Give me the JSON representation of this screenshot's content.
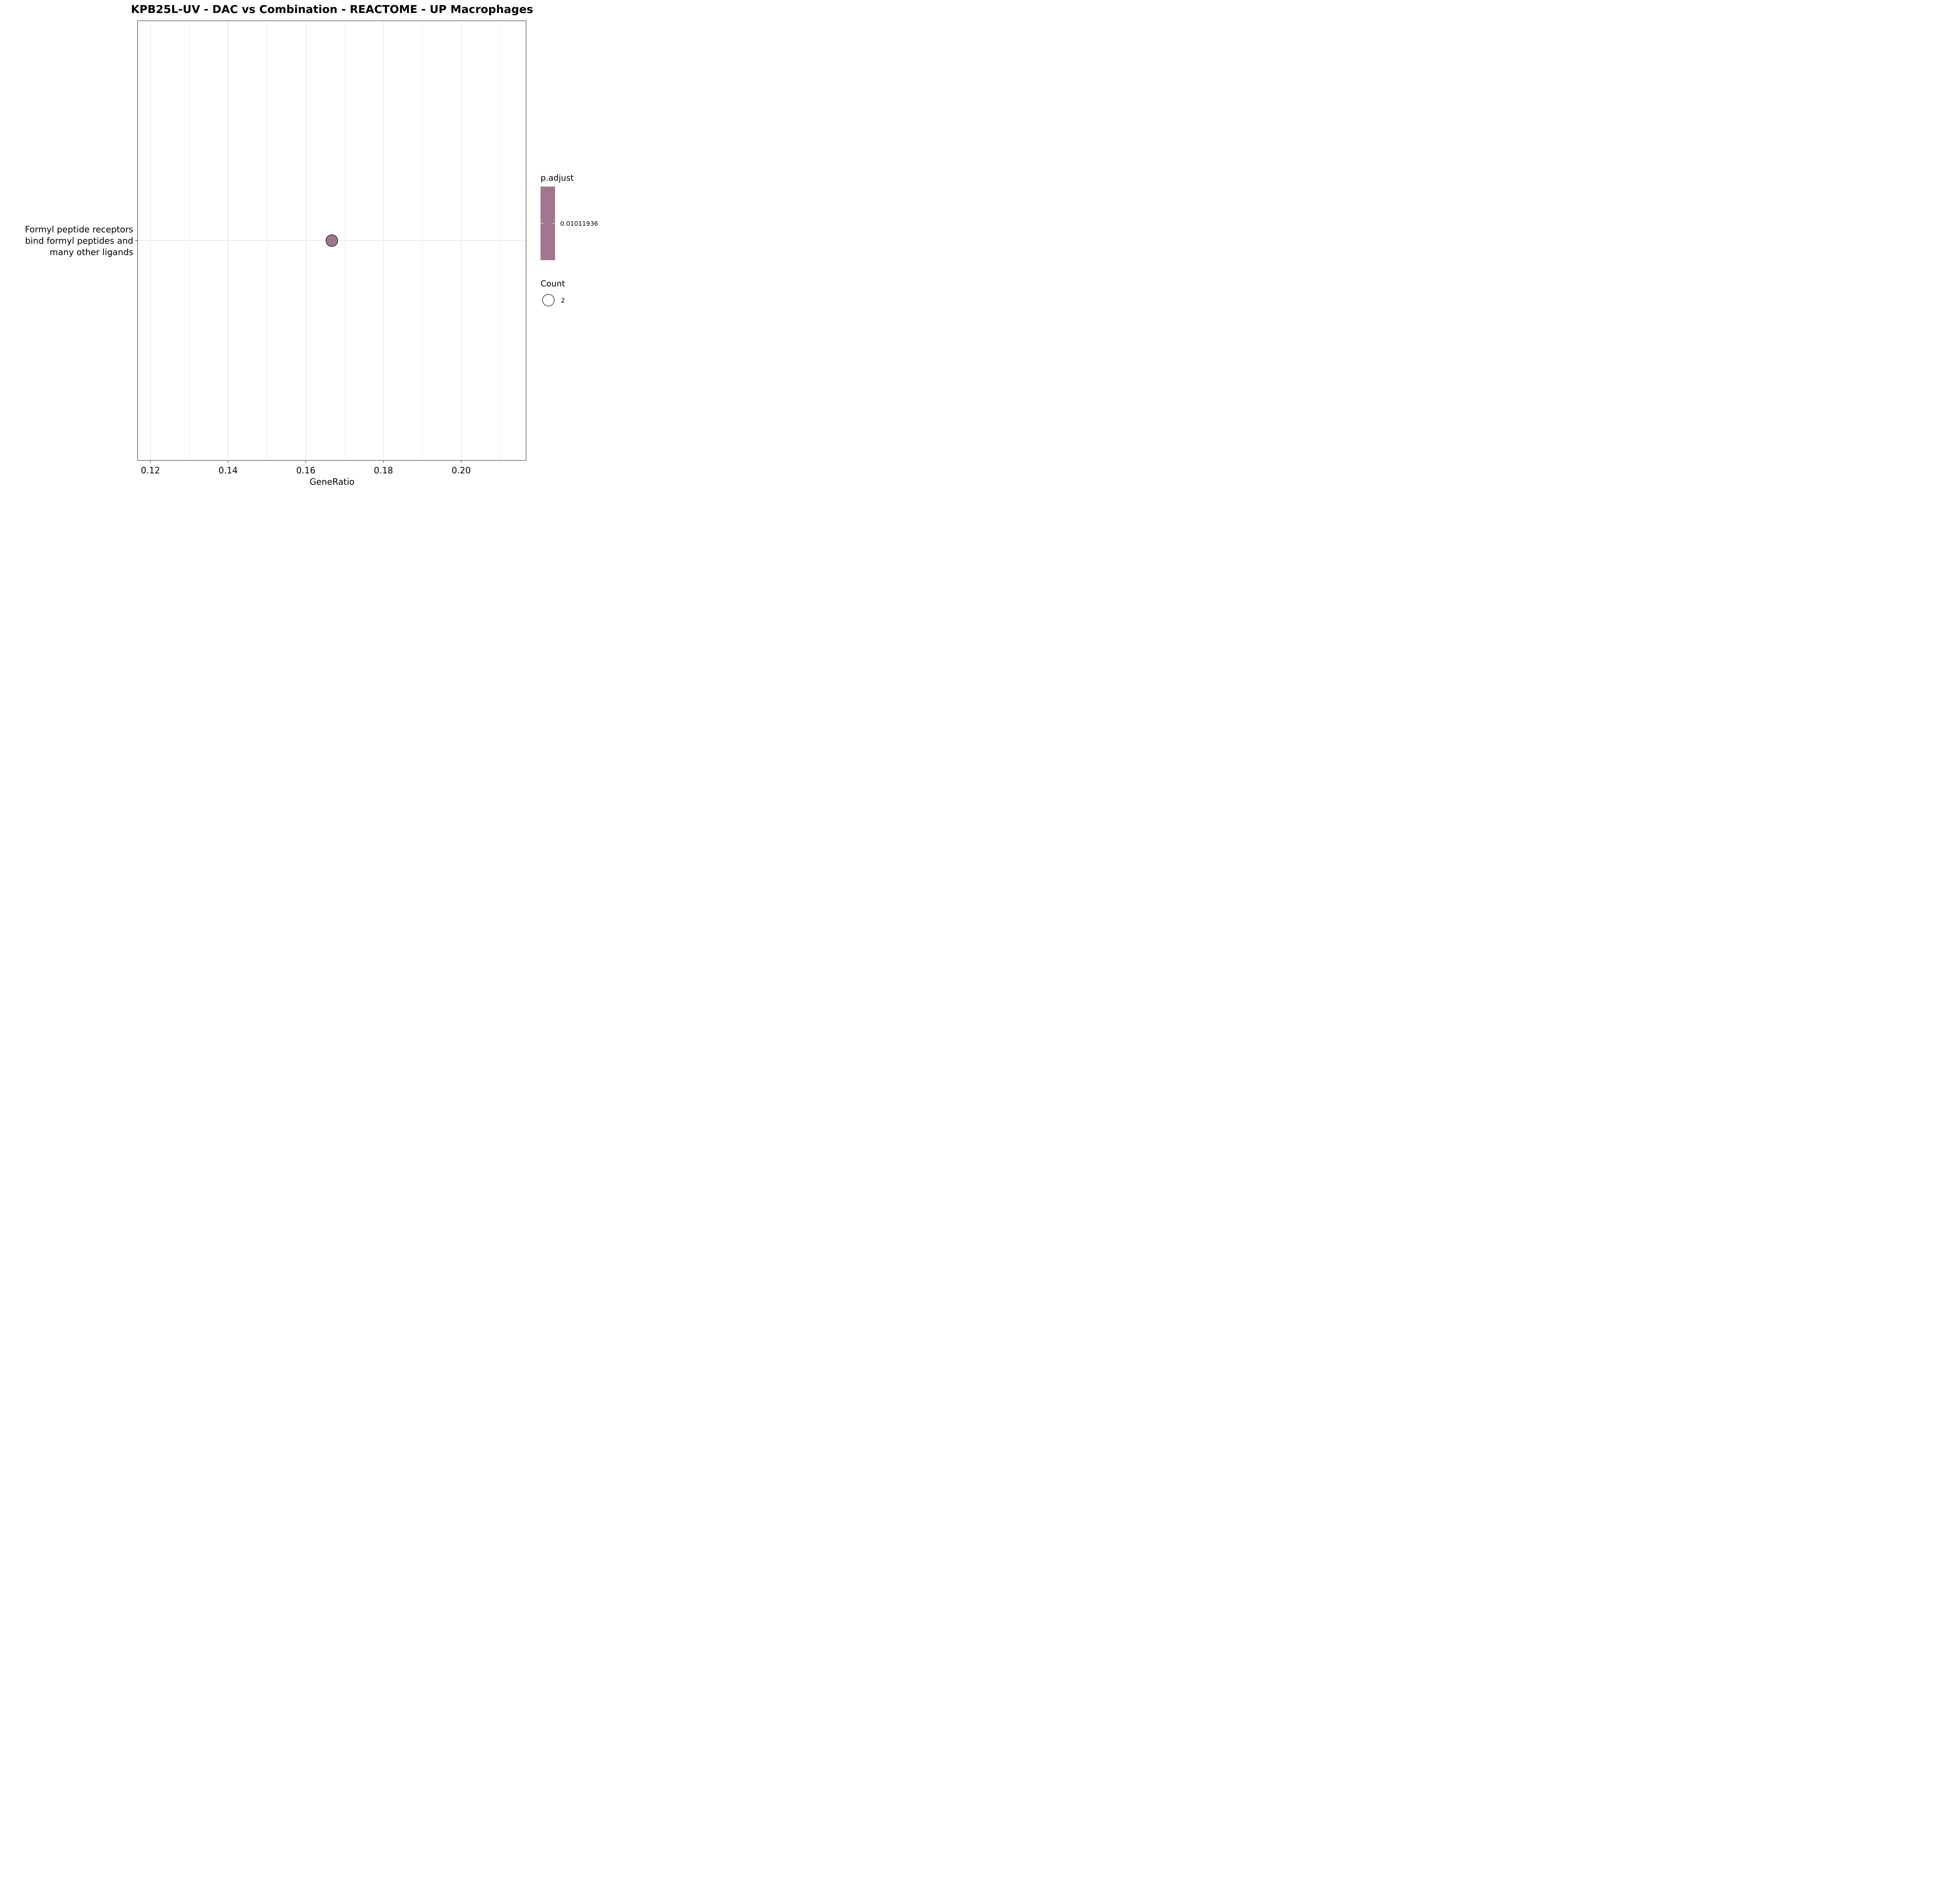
{
  "chart_data": {
    "type": "scatter",
    "title": "KPB25L-UV - DAC vs Combination - REACTOME - UP Macrophages",
    "xlabel": "GeneRatio",
    "ylabel": "",
    "xlim": [
      0.1167,
      0.2167
    ],
    "x_ticks": [
      0.12,
      0.14,
      0.16,
      0.18,
      0.2
    ],
    "x_tick_labels": [
      "0.12",
      "0.14",
      "0.16",
      "0.18",
      "0.20"
    ],
    "categories": [
      "Formyl peptide receptors bind formyl peptides and many other ligands"
    ],
    "category_label_lines": [
      [
        "Formyl peptide receptors",
        "bind formyl peptides and",
        "many other ligands"
      ]
    ],
    "points": [
      {
        "category": "Formyl peptide receptors bind formyl peptides and many other ligands",
        "x": 0.1667,
        "count": 2,
        "p_adjust": 0.01011936
      }
    ],
    "grid": true,
    "legend": {
      "placement": "right",
      "color_title": "p.adjust",
      "color_labels": [
        "0.01011936"
      ],
      "size_title": "Count",
      "size_labels": [
        "2"
      ]
    },
    "colors": {
      "point_fill": "#a2768e",
      "point_stroke": "#000000",
      "grid": "#ebebeb",
      "panel_border": "#333333"
    }
  }
}
